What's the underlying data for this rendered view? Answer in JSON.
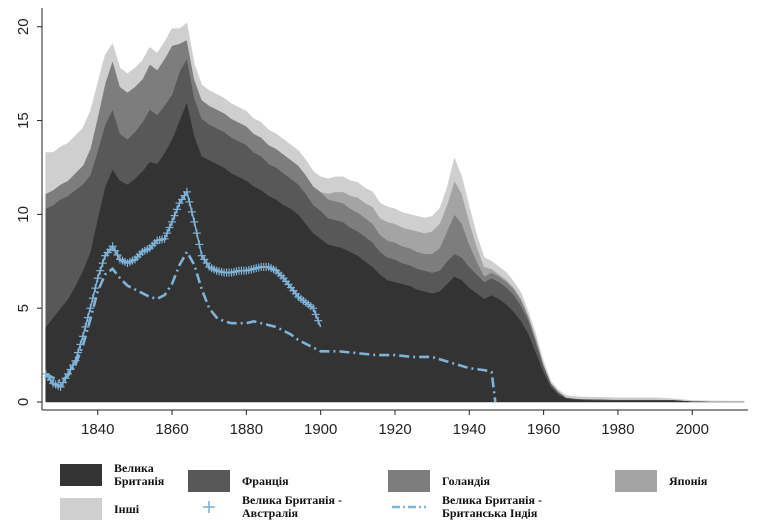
{
  "chart_data": {
    "type": "area",
    "title": "",
    "xlabel": "",
    "ylabel": "",
    "xlim": [
      1825,
      2015
    ],
    "ylim": [
      0,
      21
    ],
    "x_ticks": [
      1840,
      1860,
      1880,
      1900,
      1920,
      1940,
      1960,
      1980,
      2000
    ],
    "y_ticks": [
      0,
      5,
      10,
      15,
      20
    ],
    "stacked": true,
    "x": [
      1826,
      1828,
      1830,
      1832,
      1834,
      1836,
      1838,
      1840,
      1842,
      1844,
      1846,
      1848,
      1850,
      1852,
      1854,
      1856,
      1858,
      1860,
      1862,
      1864,
      1866,
      1868,
      1870,
      1872,
      1874,
      1876,
      1878,
      1880,
      1882,
      1884,
      1886,
      1888,
      1890,
      1892,
      1894,
      1896,
      1898,
      1900,
      1902,
      1904,
      1906,
      1908,
      1910,
      1912,
      1914,
      1916,
      1918,
      1920,
      1922,
      1924,
      1926,
      1928,
      1930,
      1932,
      1934,
      1936,
      1938,
      1940,
      1942,
      1944,
      1946,
      1948,
      1950,
      1952,
      1954,
      1956,
      1958,
      1960,
      1962,
      1964,
      1966,
      1968,
      1970,
      1975,
      1980,
      1985,
      1990,
      1995,
      2000,
      2005,
      2010,
      2014
    ],
    "series": [
      {
        "name": "Велика Британія",
        "color": "#333333",
        "values": [
          4.0,
          4.5,
          5.0,
          5.5,
          6.2,
          7.0,
          8.0,
          9.8,
          11.5,
          12.4,
          11.8,
          11.6,
          11.9,
          12.3,
          12.8,
          12.7,
          13.3,
          14.0,
          15.0,
          16.0,
          14.2,
          13.1,
          12.9,
          12.7,
          12.5,
          12.2,
          12.0,
          11.8,
          11.5,
          11.3,
          11.0,
          10.8,
          10.5,
          10.3,
          10.0,
          9.5,
          9.0,
          8.7,
          8.4,
          8.3,
          8.2,
          8.0,
          7.8,
          7.5,
          7.2,
          6.8,
          6.5,
          6.4,
          6.3,
          6.2,
          6.0,
          5.9,
          5.8,
          5.9,
          6.3,
          6.7,
          6.5,
          6.1,
          5.8,
          5.5,
          5.7,
          5.5,
          5.2,
          4.8,
          4.3,
          3.6,
          2.6,
          1.6,
          0.8,
          0.4,
          0.2,
          0.15,
          0.12,
          0.1,
          0.1,
          0.1,
          0.1,
          0.1,
          0.05,
          0.03,
          0.03,
          0.03
        ]
      },
      {
        "name": "Франція",
        "color": "#585858",
        "values": [
          6.3,
          6.0,
          5.8,
          5.5,
          5.1,
          4.6,
          4.1,
          3.6,
          3.3,
          3.2,
          2.5,
          2.4,
          2.5,
          2.6,
          2.8,
          2.6,
          2.5,
          2.4,
          2.6,
          2.3,
          2.0,
          2.0,
          1.9,
          1.9,
          1.9,
          1.9,
          1.9,
          1.9,
          1.8,
          1.8,
          1.7,
          1.7,
          1.7,
          1.6,
          1.6,
          1.6,
          1.5,
          1.5,
          1.4,
          1.4,
          1.4,
          1.3,
          1.3,
          1.3,
          1.3,
          1.2,
          1.2,
          1.2,
          1.1,
          1.1,
          1.1,
          1.1,
          1.1,
          1.1,
          1.2,
          1.2,
          1.2,
          1.1,
          1.0,
          0.9,
          0.9,
          0.9,
          0.9,
          0.9,
          0.8,
          0.7,
          0.5,
          0.3,
          0.15,
          0.1,
          0.05,
          0.05,
          0.05,
          0.05,
          0.03,
          0.03,
          0.03,
          0.02,
          0.0,
          0.0,
          0.0,
          0.0
        ]
      },
      {
        "name": "Голандія",
        "color": "#7d7d7d",
        "values": [
          0.8,
          0.8,
          0.8,
          0.8,
          0.9,
          1.0,
          1.4,
          1.8,
          2.2,
          2.6,
          2.5,
          2.5,
          2.4,
          2.3,
          2.4,
          2.4,
          2.5,
          2.6,
          1.5,
          1.0,
          1.0,
          1.0,
          1.0,
          1.0,
          1.0,
          1.0,
          1.0,
          1.0,
          1.0,
          1.0,
          1.0,
          1.0,
          1.0,
          1.0,
          1.0,
          1.0,
          1.0,
          1.0,
          1.0,
          1.0,
          1.0,
          1.0,
          1.0,
          1.0,
          1.0,
          0.9,
          0.9,
          0.9,
          0.9,
          0.9,
          0.9,
          0.9,
          1.0,
          1.2,
          1.6,
          2.1,
          1.8,
          1.2,
          0.7,
          0.3,
          0.3,
          0.3,
          0.3,
          0.3,
          0.3,
          0.2,
          0.2,
          0.1,
          0.05,
          0.05,
          0.0,
          0.0,
          0.0,
          0.0,
          0.0,
          0.0,
          0.0,
          0.0,
          0.0,
          0.0,
          0.0,
          0.0
        ]
      },
      {
        "name": "Японія",
        "color": "#a4a4a4",
        "values": [
          0,
          0,
          0,
          0,
          0,
          0,
          0,
          0,
          0,
          0,
          0,
          0,
          0,
          0,
          0,
          0,
          0,
          0,
          0,
          0,
          0,
          0,
          0,
          0,
          0,
          0,
          0,
          0,
          0,
          0,
          0,
          0,
          0,
          0,
          0,
          0,
          0,
          0,
          0.3,
          0.5,
          0.6,
          0.7,
          0.8,
          0.8,
          0.9,
          0.9,
          1.0,
          1.0,
          1.0,
          1.0,
          1.1,
          1.1,
          1.2,
          1.3,
          1.4,
          1.8,
          1.6,
          1.2,
          0.8,
          0.5,
          0.2,
          0.1,
          0.1,
          0.1,
          0.1,
          0.05,
          0.05,
          0.0,
          0.0,
          0.0,
          0.0,
          0.0,
          0.0,
          0.0,
          0.0,
          0.0,
          0.0,
          0.0,
          0.0,
          0.0,
          0.0,
          0.0
        ]
      },
      {
        "name": "Інші",
        "color": "#cfcfcf",
        "values": [
          2.2,
          2.0,
          2.0,
          2.0,
          2.0,
          2.0,
          2.0,
          1.8,
          1.5,
          0.9,
          1.0,
          1.0,
          1.0,
          1.0,
          0.9,
          0.9,
          0.9,
          0.9,
          0.8,
          0.9,
          0.8,
          0.8,
          0.8,
          0.8,
          0.8,
          0.8,
          0.8,
          0.8,
          0.8,
          0.8,
          0.8,
          0.8,
          0.8,
          0.8,
          0.8,
          0.8,
          0.8,
          0.8,
          0.8,
          0.8,
          0.8,
          0.8,
          0.8,
          0.8,
          0.8,
          0.8,
          0.8,
          0.8,
          0.8,
          0.8,
          0.8,
          0.8,
          0.8,
          0.8,
          0.9,
          1.2,
          0.9,
          0.8,
          0.6,
          0.5,
          0.4,
          0.4,
          0.4,
          0.3,
          0.3,
          0.2,
          0.2,
          0.15,
          0.1,
          0.1,
          0.1,
          0.1,
          0.1,
          0.1,
          0.1,
          0.1,
          0.1,
          0.05,
          0.03,
          0.03,
          0.02,
          0.02
        ]
      }
    ],
    "lines": [
      {
        "name": "Велика Британія - Австралія",
        "color": "#7fb3d8",
        "marker": "plus",
        "x": [
          1826,
          1828,
          1830,
          1832,
          1834,
          1836,
          1838,
          1840,
          1842,
          1844,
          1846,
          1848,
          1850,
          1852,
          1854,
          1856,
          1858,
          1860,
          1862,
          1864,
          1866,
          1868,
          1870,
          1872,
          1874,
          1876,
          1878,
          1880,
          1882,
          1884,
          1886,
          1888,
          1890,
          1892,
          1894,
          1896,
          1898,
          1900
        ],
        "y": [
          1.5,
          1.0,
          0.8,
          1.5,
          2.2,
          3.5,
          5.0,
          6.6,
          7.8,
          8.3,
          7.6,
          7.4,
          7.6,
          8.0,
          8.2,
          8.6,
          8.7,
          9.6,
          10.6,
          11.2,
          9.6,
          7.8,
          7.2,
          7.0,
          6.9,
          6.9,
          7.0,
          7.0,
          7.1,
          7.2,
          7.2,
          7.0,
          6.6,
          6.1,
          5.6,
          5.3,
          5.0,
          4.0
        ]
      },
      {
        "name": "Велика Британія - Британська Індія",
        "color": "#7fb3d8",
        "marker": "dashdot",
        "x": [
          1826,
          1828,
          1830,
          1832,
          1834,
          1836,
          1838,
          1840,
          1842,
          1844,
          1846,
          1848,
          1850,
          1852,
          1854,
          1856,
          1858,
          1860,
          1862,
          1864,
          1866,
          1868,
          1870,
          1872,
          1874,
          1876,
          1878,
          1880,
          1882,
          1884,
          1886,
          1888,
          1890,
          1892,
          1894,
          1896,
          1898,
          1900,
          1905,
          1910,
          1915,
          1920,
          1925,
          1930,
          1935,
          1940,
          1944,
          1946,
          1947
        ],
        "y": [
          1.5,
          1.3,
          1.1,
          1.4,
          2.0,
          3.0,
          4.4,
          5.9,
          6.8,
          7.1,
          6.6,
          6.2,
          6.0,
          5.8,
          5.6,
          5.5,
          5.7,
          6.3,
          7.3,
          8.0,
          7.3,
          6.0,
          5.0,
          4.5,
          4.3,
          4.2,
          4.2,
          4.2,
          4.3,
          4.2,
          4.1,
          4.0,
          3.8,
          3.6,
          3.3,
          3.1,
          2.9,
          2.7,
          2.7,
          2.6,
          2.5,
          2.5,
          2.4,
          2.4,
          2.1,
          1.8,
          1.7,
          1.6,
          0.0
        ]
      }
    ],
    "legend": {
      "placement": "bottom",
      "items": [
        {
          "label": "Велика\nБританія",
          "type": "swatch",
          "color": "#333333"
        },
        {
          "label": "Франція",
          "type": "swatch",
          "color": "#585858"
        },
        {
          "label": "Голандія",
          "type": "swatch",
          "color": "#7d7d7d"
        },
        {
          "label": "Японія",
          "type": "swatch",
          "color": "#a4a4a4"
        },
        {
          "label": "Інші",
          "type": "swatch",
          "color": "#cfcfcf"
        },
        {
          "label": "Велика Британія -\nАвстралія",
          "type": "plus",
          "color": "#7fb3d8"
        },
        {
          "label": "Велика Британія -\nБританська Індія",
          "type": "dashdot",
          "color": "#7fb3d8"
        }
      ]
    }
  }
}
